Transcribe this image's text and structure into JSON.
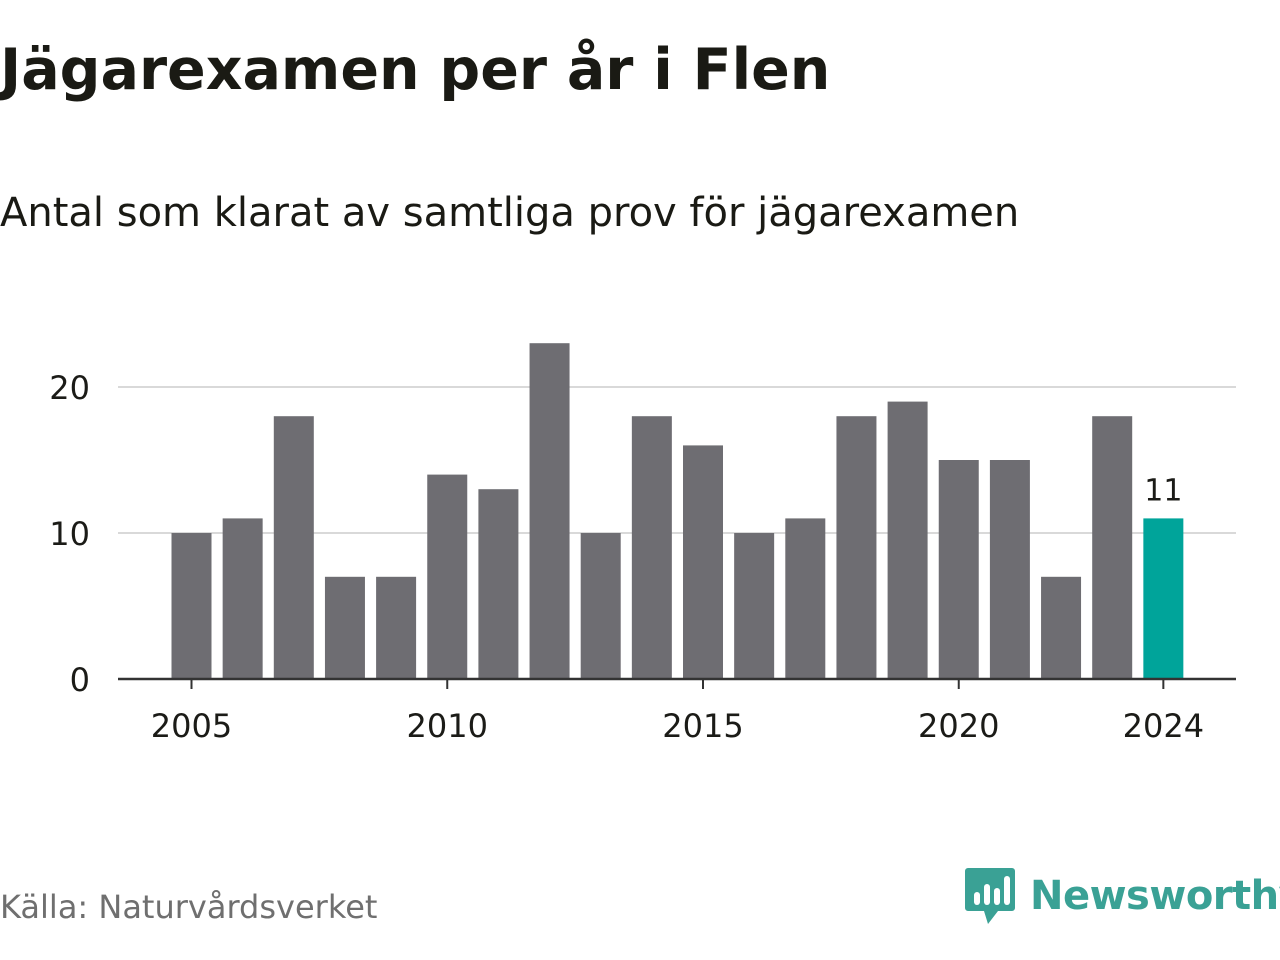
{
  "title": "Jägarexamen per år i Flen",
  "subtitle": "Antal som klarat av samtliga prov för jägarexamen",
  "source": "Källa: Naturvårdsverket",
  "brand": {
    "name": "Newsworthy",
    "icon": "newsworthy-logo-icon",
    "color": "#3aa195"
  },
  "colors": {
    "bar": "#6e6d72",
    "highlight": "#00a49a",
    "grid": "#d9d9d9",
    "axis": "#333333",
    "text": "#1b1b17"
  },
  "chart_data": {
    "type": "bar",
    "categories": [
      "2005",
      "2006",
      "2007",
      "2008",
      "2009",
      "2010",
      "2011",
      "2012",
      "2013",
      "2014",
      "2015",
      "2016",
      "2017",
      "2018",
      "2019",
      "2020",
      "2021",
      "2022",
      "2023",
      "2024"
    ],
    "values": [
      10,
      11,
      18,
      7,
      7,
      14,
      13,
      23,
      10,
      18,
      16,
      10,
      11,
      18,
      19,
      15,
      15,
      7,
      18,
      11
    ],
    "highlight_index": 19,
    "data_labels": [
      {
        "index": 19,
        "text": "11"
      }
    ],
    "x_tick_labels": [
      "2005",
      "2010",
      "2015",
      "2020",
      "2024"
    ],
    "y_ticks": [
      0,
      10,
      20
    ],
    "ylim": [
      0,
      23
    ],
    "grid": true,
    "xlabel": "",
    "ylabel": ""
  }
}
